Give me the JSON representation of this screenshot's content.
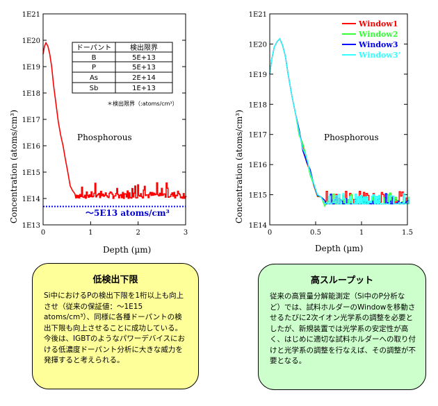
{
  "colors": {
    "left_series": "#ff0000",
    "detection_limit_line": "#0000ff",
    "detection_limit_text": "#0000cc",
    "window1": "#ff0000",
    "window2": "#33ff33",
    "window3": "#0000ff",
    "window3p": "#33ffff",
    "left_box_bg": "#ffff99",
    "right_box_bg": "#ccffcc"
  },
  "chart_data": [
    {
      "type": "line",
      "yscale": "log",
      "xlim": [
        0,
        3
      ],
      "ylim": [
        10000000000000.0,
        1e+21
      ],
      "x_ticks": [
        "0",
        "1",
        "2",
        "3"
      ],
      "y_ticks": [
        "1E13",
        "1E14",
        "1E15",
        "1E16",
        "1E17",
        "1E18",
        "1E19",
        "1E20",
        "1E21"
      ],
      "xlabel": "Depth (µm)",
      "ylabel": "Concentration (atoms/cm³)",
      "annotation": "Phosphorous",
      "detection_limit": {
        "value": 50000000000000.0,
        "label": "～5E13 atoms/cm³"
      },
      "series": [
        {
          "x": [
            0,
            0.03,
            0.06,
            0.1,
            0.14,
            0.18,
            0.22,
            0.27,
            0.32,
            0.37,
            0.42,
            0.47,
            0.52,
            0.57,
            0.62,
            0.67
          ],
          "values": [
            3e+19,
            6e+19,
            8e+19,
            6e+19,
            3e+19,
            1e+19,
            2e+18,
            4e+17,
            8e+16,
            2.5e+16,
            1e+16,
            3000000000000000.0,
            1000000000000000.0,
            300000000000000.0,
            200000000000000.0,
            150000000000000.0
          ]
        }
      ],
      "noise_floor": {
        "x_range": [
          0.67,
          3
        ],
        "low": 100000000000000.0,
        "high": 180000000000000.0,
        "spikes": 400000000000000.0
      },
      "table": {
        "headers": [
          "ドーパント",
          "検出限界"
        ],
        "rows": [
          [
            "B",
            "5E+13"
          ],
          [
            "P",
            "5E+13"
          ],
          [
            "As",
            "2E+14"
          ],
          [
            "Sb",
            "1E+13"
          ]
        ],
        "note": "＊検出限界（:atoms/cm³）"
      }
    },
    {
      "type": "line",
      "yscale": "log",
      "xlim": [
        0,
        1.5
      ],
      "ylim": [
        100000000000000.0,
        1e+21
      ],
      "x_ticks": [
        "0",
        "0.5",
        "1",
        "1.5"
      ],
      "y_ticks": [
        "1E14",
        "1E15",
        "1E16",
        "1E17",
        "1E18",
        "1E19",
        "1E20",
        "1E21"
      ],
      "xlabel": "Depth (µm)",
      "ylabel": "Concentration (atoms/cm³)",
      "annotation": "Phosphorous",
      "legend_position": "top-right",
      "profile": {
        "x": [
          0,
          0.02,
          0.05,
          0.08,
          0.11,
          0.14,
          0.17,
          0.2,
          0.24,
          0.28,
          0.32,
          0.36,
          0.4,
          0.44,
          0.48,
          0.52,
          0.56,
          0.6
        ],
        "values": [
          1e+19,
          3e+19,
          8e+19,
          1.2e+20,
          1.5e+20,
          9e+19,
          4e+19,
          1e+19,
          2e+18,
          5e+17,
          1.2e+17,
          4e+16,
          1.5e+16,
          6000000000000000.0,
          2500000000000000.0,
          1200000000000000.0,
          700000000000000.0,
          500000000000000.0
        ]
      },
      "series": [
        {
          "name": "Window1",
          "floor": 600000000000000.0
        },
        {
          "name": "Window2",
          "floor": 550000000000000.0
        },
        {
          "name": "Window3",
          "floor": 500000000000000.0
        },
        {
          "name": "Window3’",
          "floor": 520000000000000.0
        }
      ]
    }
  ],
  "left_box": {
    "title": "低検出下限",
    "body": "Si中におけるPの検出下限を1桁以上も向上させ（従来の保証値：～1E15 atoms/cm³）、同様に各種ドーパントの検出下限も向上させることに成功している。今後は、IGBTのようなパワーデバイスにおける低濃度ドーパント分析に大きな威力を発揮すると考えられる。"
  },
  "right_box": {
    "title": "高スループット",
    "body": "従来の高質量分解能測定（Si中のP分析など）では、試料ホルダーのWindowを移動させるたびに2次イオン光学系の調整を必要としたが、新規装置では光学系の安定性が高く、はじめに適切な試料ホルダーへの取り付けと光学系の調整を行なえば、その調整が不要となる。"
  }
}
